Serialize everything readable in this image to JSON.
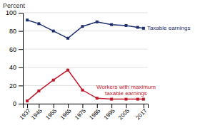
{
  "chart_data": {
    "type": "line",
    "ylabel": "Percent",
    "x": [
      1937,
      1945,
      1955,
      1965,
      1975,
      1985,
      1995,
      2005,
      2013,
      2017
    ],
    "series": [
      {
        "name": "Taxable earnings",
        "color": "#1f3070",
        "marker": "square",
        "line_style": "solid",
        "values": [
          92,
          88,
          80,
          72,
          85,
          90,
          87,
          86,
          84,
          83
        ]
      },
      {
        "name": "Workers with maximum\ntaxable earnings",
        "color": "#c0172a",
        "marker": "square",
        "line_style": "solid",
        "values": [
          3,
          14,
          26,
          37,
          15,
          6,
          5,
          5,
          5,
          5
        ]
      }
    ],
    "xlim": [
      1934,
      2020
    ],
    "ylim": [
      0,
      100
    ],
    "xticks": [
      1937,
      1945,
      1955,
      1965,
      1975,
      1985,
      1995,
      2005,
      2017
    ],
    "yticks": [
      0,
      20,
      40,
      60,
      80,
      100
    ],
    "grid": true
  }
}
